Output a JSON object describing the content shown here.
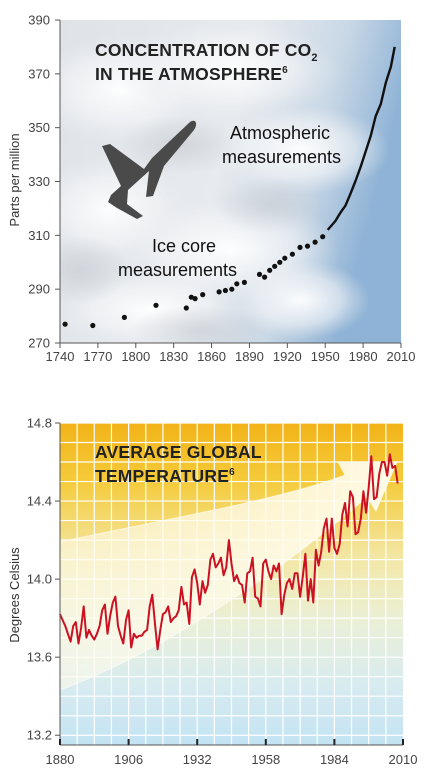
{
  "chart_data": [
    {
      "type": "scatter",
      "title_line1": "CONCENTRATION OF CO",
      "title_sub": "2",
      "title_line2": "IN THE ATMOSPHERE",
      "title_sup": "6",
      "ylabel": "Parts per million",
      "xlabel": "",
      "xlim": [
        1740,
        2010
      ],
      "ylim": [
        270,
        390
      ],
      "x_ticks": [
        1740,
        1770,
        1800,
        1830,
        1860,
        1890,
        1920,
        1950,
        1980,
        2010
      ],
      "y_ticks": [
        270,
        290,
        310,
        330,
        350,
        370,
        390
      ],
      "grid": false,
      "annotations": {
        "atmos_line1": "Atmospheric",
        "atmos_line2": "measurements",
        "ice_line1": "Ice core",
        "ice_line2": "measurements"
      },
      "series": [
        {
          "points": [
            [
              1744,
              277
            ],
            [
              1766,
              276.5
            ],
            [
              1791,
              279.5
            ],
            [
              1816,
              284
            ],
            [
              1840,
              283
            ],
            [
              1844,
              287
            ],
            [
              1847,
              286.5
            ],
            [
              1853,
              288
            ],
            [
              1866,
              289
            ],
            [
              1871,
              289.5
            ],
            [
              1876,
              290
            ],
            [
              1880,
              292
            ],
            [
              1886,
              292.5
            ],
            [
              1898,
              295.5
            ],
            [
              1902,
              294.5
            ],
            [
              1906,
              297
            ],
            [
              1910,
              298.5
            ],
            [
              1914,
              300
            ],
            [
              1918,
              301.5
            ],
            [
              1924,
              303
            ],
            [
              1930,
              305.5
            ],
            [
              1936,
              306
            ],
            [
              1942,
              307.5
            ],
            [
              1948,
              309.5
            ]
          ]
        },
        {
          "points": [
            [
              1952,
              312
            ],
            [
              1958,
              315.3
            ],
            [
              1962,
              318.4
            ],
            [
              1966,
              321
            ],
            [
              1970,
              325.5
            ],
            [
              1974,
              330.2
            ],
            [
              1978,
              335.4
            ],
            [
              1982,
              341.1
            ],
            [
              1986,
              346.9
            ],
            [
              1990,
              354.3
            ],
            [
              1994,
              358.8
            ],
            [
              1998,
              366.7
            ],
            [
              2002,
              372.7
            ],
            [
              2005,
              380
            ]
          ]
        }
      ]
    },
    {
      "type": "line",
      "title_line1": "AVERAGE GLOBAL",
      "title_line2": "TEMPERATURE",
      "title_sup": "6",
      "ylabel": "Degrees Celsius",
      "xlabel": "",
      "xlim": [
        1880,
        2010
      ],
      "ylim": [
        13.15,
        14.8
      ],
      "x_ticks": [
        1880,
        1906,
        1932,
        1958,
        1984,
        2010
      ],
      "y_ticks": [
        13.2,
        13.6,
        14.0,
        14.4,
        14.8
      ],
      "y_tick_labels": [
        "13.2",
        "13.6",
        "14.0",
        "14.4",
        "14.8"
      ],
      "grid": true,
      "colors": {
        "line": "#cc1122",
        "band_top": "#f2b318",
        "band_bottom": "#c3e3f3"
      },
      "series": [
        {
          "x": [
            1880,
            1881,
            1882,
            1883,
            1884,
            1885,
            1886,
            1887,
            1888,
            1889,
            1890,
            1891,
            1892,
            1893,
            1894,
            1895,
            1896,
            1897,
            1898,
            1899,
            1900,
            1901,
            1902,
            1903,
            1904,
            1905,
            1906,
            1907,
            1908,
            1909,
            1910,
            1911,
            1912,
            1913,
            1914,
            1915,
            1916,
            1917,
            1918,
            1919,
            1920,
            1921,
            1922,
            1923,
            1924,
            1925,
            1926,
            1927,
            1928,
            1929,
            1930,
            1931,
            1932,
            1933,
            1934,
            1935,
            1936,
            1937,
            1938,
            1939,
            1940,
            1941,
            1942,
            1943,
            1944,
            1945,
            1946,
            1947,
            1948,
            1949,
            1950,
            1951,
            1952,
            1953,
            1954,
            1955,
            1956,
            1957,
            1958,
            1959,
            1960,
            1961,
            1962,
            1963,
            1964,
            1965,
            1966,
            1967,
            1968,
            1969,
            1970,
            1971,
            1972,
            1973,
            1974,
            1975,
            1976,
            1977,
            1978,
            1979,
            1980,
            1981,
            1982,
            1983,
            1984,
            1985,
            1986,
            1987,
            1988,
            1989,
            1990,
            1991,
            1992,
            1993,
            1994,
            1995,
            1996,
            1997,
            1998,
            1999,
            2000,
            2001,
            2002,
            2003,
            2004,
            2005,
            2006,
            2007,
            2008
          ],
          "values": [
            13.82,
            13.79,
            13.76,
            13.72,
            13.68,
            13.76,
            13.78,
            13.67,
            13.75,
            13.86,
            13.7,
            13.74,
            13.71,
            13.69,
            13.72,
            13.76,
            13.84,
            13.87,
            13.72,
            13.81,
            13.88,
            13.91,
            13.76,
            13.71,
            13.67,
            13.79,
            13.84,
            13.65,
            13.72,
            13.7,
            13.71,
            13.71,
            13.73,
            13.74,
            13.86,
            13.92,
            13.77,
            13.64,
            13.74,
            13.82,
            13.83,
            13.86,
            13.78,
            13.8,
            13.81,
            13.84,
            13.96,
            13.87,
            13.88,
            13.77,
            14.01,
            14.05,
            13.98,
            13.87,
            13.99,
            13.93,
            13.97,
            14.1,
            14.13,
            14.06,
            14.08,
            14.11,
            14.02,
            14.06,
            14.2,
            14.08,
            13.99,
            14.02,
            13.98,
            13.97,
            13.88,
            14.03,
            14.04,
            14.11,
            13.91,
            13.9,
            13.86,
            14.08,
            14.1,
            14.04,
            14.0,
            14.07,
            14.04,
            14.08,
            13.82,
            13.92,
            13.98,
            14.0,
            13.95,
            14.03,
            14.03,
            13.91,
            14.01,
            14.13,
            13.89,
            14.0,
            13.88,
            14.15,
            14.07,
            14.14,
            14.26,
            14.31,
            14.14,
            14.31,
            14.16,
            14.13,
            14.18,
            14.33,
            14.39,
            14.27,
            14.45,
            14.42,
            14.23,
            14.24,
            14.31,
            14.45,
            14.34,
            14.47,
            14.63,
            14.41,
            14.42,
            14.54,
            14.6,
            14.6,
            14.53,
            14.64,
            14.57,
            14.58,
            14.49
          ]
        }
      ]
    }
  ]
}
